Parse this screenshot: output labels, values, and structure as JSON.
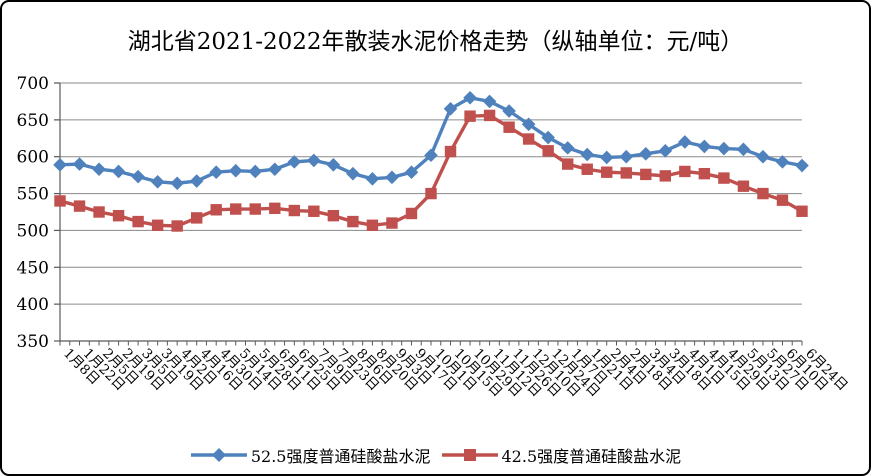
{
  "title": "湖北省2021-2022年散装水泥价格走势（纵轴单位：元/吨）",
  "chart_data": {
    "type": "line",
    "title": "湖北省2021-2022年散装水泥价格走势（纵轴单位：元/吨）",
    "ylabel_unit": "元/吨",
    "categories": [
      "1月8日",
      "1月22日",
      "2月5日",
      "2月19日",
      "3月5日",
      "3月19日",
      "4月2日",
      "4月16日",
      "4月30日",
      "5月14日",
      "5月28日",
      "6月11日",
      "6月25日",
      "7月9日",
      "7月23日",
      "8月6日",
      "8月20日",
      "9月3日",
      "9月17日",
      "10月1日",
      "10月15日",
      "10月29日",
      "11月12日",
      "11月26日",
      "12月10日",
      "12月24日",
      "1月7日",
      "1月21日",
      "2月4日",
      "2月18日",
      "3月4日",
      "3月18日",
      "4月1日",
      "4月15日",
      "4月29日",
      "5月13日",
      "5月27日",
      "6月10日",
      "6月24日"
    ],
    "series": [
      {
        "name": "52.5强度普通硅酸盐水泥",
        "marker": "diamond",
        "color": "#4F81BD",
        "values": [
          589,
          590,
          583,
          580,
          573,
          566,
          564,
          567,
          579,
          581,
          580,
          583,
          593,
          595,
          589,
          577,
          570,
          572,
          579,
          602,
          665,
          680,
          675,
          662,
          644,
          626,
          612,
          603,
          599,
          600,
          604,
          608,
          620,
          614,
          611,
          610,
          600,
          593,
          588
        ]
      },
      {
        "name": "42.5强度普通硅酸盐水泥",
        "marker": "square",
        "color": "#C0504D",
        "values": [
          540,
          533,
          525,
          520,
          512,
          507,
          506,
          517,
          528,
          529,
          529,
          530,
          527,
          526,
          520,
          512,
          507,
          510,
          523,
          550,
          607,
          655,
          656,
          640,
          624,
          608,
          590,
          583,
          579,
          578,
          576,
          574,
          580,
          577,
          571,
          560,
          550,
          541,
          526
        ]
      }
    ],
    "ylim": [
      350,
      700
    ],
    "ytick_step": 50,
    "ytick_labels": [
      "350",
      "400",
      "450",
      "500",
      "550",
      "600",
      "650",
      "700"
    ],
    "grid": true,
    "grid_color": "#8a8a8a",
    "axis_color": "#595959",
    "legend_position": "bottom"
  }
}
